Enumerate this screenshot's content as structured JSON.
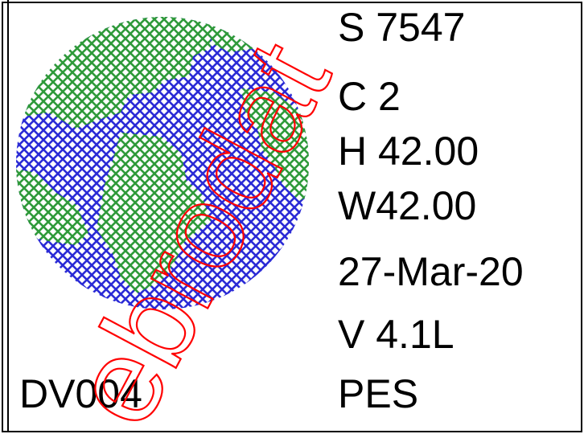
{
  "info": {
    "stitches": "S 7547",
    "colors": "C 2",
    "height": "H 42.00",
    "width": "W42.00",
    "date": "27-Mar-20",
    "version": "V  4.1L",
    "format": "PES"
  },
  "design_code": "DV004",
  "watermark_text": "ebrodat",
  "thread_colors": {
    "blue": "#2b2bd6",
    "green": "#2f9a3a"
  },
  "watermark_color": "#ff0000"
}
